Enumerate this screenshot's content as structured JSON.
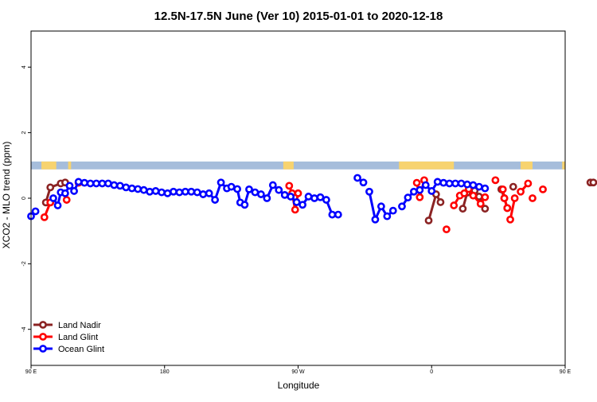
{
  "chart_data": {
    "type": "line",
    "title": "12.5N-17.5N June (Ver 10)   2015-01-01 to 2020-12-18",
    "xlabel": "Longitude",
    "ylabel": "XCO2 - MLO trend (ppm)",
    "xlim": [
      90,
      450
    ],
    "ylim": [
      -5.1,
      5.1
    ],
    "x_ticks": [
      {
        "value": 90,
        "label": "90 E"
      },
      {
        "value": 180,
        "label": "180"
      },
      {
        "value": 270,
        "label": "90 W"
      },
      {
        "value": 360,
        "label": "0"
      },
      {
        "value": 450,
        "label": "90 E"
      },
      {
        "value": 540,
        "label": "180"
      }
    ],
    "y_ticks": [
      {
        "value": -4,
        "label": "-4"
      },
      {
        "value": -2,
        "label": "-2"
      },
      {
        "value": 0,
        "label": "0"
      },
      {
        "value": 2,
        "label": "2"
      },
      {
        "value": 4,
        "label": "4"
      }
    ],
    "grid": false,
    "legend_position": "bottom-left",
    "land_strip": {
      "y_range": [
        0.88,
        1.12
      ],
      "ocean_color": "#a6bddb",
      "land_color": "#f7d36f",
      "land_segments": [
        [
          97,
          107
        ],
        [
          115,
          117
        ],
        [
          260,
          267
        ],
        [
          338,
          375
        ],
        [
          420,
          428
        ],
        [
          448,
          464
        ],
        [
          473,
          481
        ]
      ]
    },
    "series": [
      {
        "name": "Land Nadir",
        "color": "#8b2323",
        "segments": [
          [
            [
              100,
              -0.13
            ],
            [
              103,
              0.33
            ],
            [
              110,
              0.45
            ],
            [
              113,
              0.48
            ]
          ],
          [
            [
              358,
              -0.68
            ],
            [
              363,
              0.12
            ],
            [
              366,
              -0.12
            ]
          ],
          [
            [
              381,
              -0.32
            ],
            [
              384,
              0.17
            ],
            [
              387,
              0.3
            ],
            [
              389,
              0.23
            ],
            [
              392,
              0.05
            ],
            [
              396,
              -0.32
            ]
          ],
          [
            [
              407,
              0.27
            ],
            [
              409,
              0.0
            ],
            [
              411,
              -0.3
            ]
          ],
          [
            [
              415,
              0.35
            ]
          ],
          [
            [
              467,
              0.48
            ],
            [
              469,
              0.48
            ]
          ]
        ]
      },
      {
        "name": "Land Glint",
        "color": "#ff0000",
        "segments": [
          [
            [
              99,
              -0.58
            ],
            [
              103,
              -0.13
            ]
          ],
          [
            [
              114,
              -0.05
            ]
          ],
          [
            [
              122,
              0.47
            ]
          ],
          [
            [
              264,
              0.38
            ],
            [
              266,
              0.15
            ],
            [
              268,
              -0.35
            ],
            [
              270,
              0.15
            ]
          ],
          [
            [
              350,
              0.47
            ],
            [
              352,
              0.03
            ],
            [
              355,
              0.55
            ]
          ],
          [
            [
              370,
              -0.95
            ]
          ],
          [
            [
              375,
              -0.22
            ],
            [
              379,
              0.08
            ],
            [
              382,
              0.15
            ],
            [
              385,
              0.28
            ],
            [
              388,
              0.08
            ],
            [
              393,
              -0.17
            ],
            [
              396,
              0.03
            ]
          ],
          [
            [
              403,
              0.55
            ]
          ],
          [
            [
              408,
              0.27
            ],
            [
              409,
              0.0
            ],
            [
              411,
              -0.3
            ]
          ],
          [
            [
              413,
              -0.65
            ],
            [
              416,
              0.0
            ]
          ],
          [
            [
              420,
              0.2
            ],
            [
              425,
              0.45
            ]
          ],
          [
            [
              428,
              0.0
            ]
          ],
          [
            [
              435,
              0.27
            ]
          ]
        ]
      },
      {
        "name": "Ocean Glint",
        "color": "#0000ff",
        "segments": [
          [
            [
              90,
              -0.55
            ],
            [
              93,
              -0.4
            ]
          ],
          [
            [
              105,
              0.0
            ],
            [
              108,
              -0.22
            ],
            [
              110,
              0.18
            ],
            [
              113,
              0.15
            ],
            [
              116,
              0.38
            ],
            [
              119,
              0.22
            ],
            [
              122,
              0.5
            ],
            [
              126,
              0.47
            ],
            [
              130,
              0.45
            ],
            [
              134,
              0.45
            ],
            [
              138,
              0.45
            ],
            [
              142,
              0.45
            ],
            [
              146,
              0.4
            ],
            [
              150,
              0.38
            ],
            [
              154,
              0.33
            ],
            [
              158,
              0.3
            ],
            [
              162,
              0.28
            ],
            [
              166,
              0.25
            ],
            [
              170,
              0.2
            ],
            [
              174,
              0.22
            ],
            [
              178,
              0.18
            ],
            [
              182,
              0.15
            ],
            [
              186,
              0.2
            ],
            [
              190,
              0.18
            ],
            [
              194,
              0.2
            ],
            [
              198,
              0.2
            ],
            [
              202,
              0.18
            ],
            [
              206,
              0.12
            ],
            [
              210,
              0.15
            ],
            [
              214,
              -0.05
            ],
            [
              218,
              0.48
            ],
            [
              222,
              0.3
            ],
            [
              225,
              0.35
            ],
            [
              229,
              0.28
            ],
            [
              231,
              -0.13
            ],
            [
              234,
              -0.2
            ],
            [
              237,
              0.27
            ],
            [
              241,
              0.18
            ],
            [
              245,
              0.12
            ],
            [
              249,
              0.0
            ],
            [
              253,
              0.4
            ],
            [
              257,
              0.25
            ],
            [
              261,
              0.1
            ],
            [
              265,
              0.05
            ],
            [
              269,
              -0.12
            ],
            [
              273,
              -0.2
            ],
            [
              277,
              0.05
            ],
            [
              281,
              0.0
            ],
            [
              285,
              0.03
            ],
            [
              289,
              -0.05
            ],
            [
              293,
              -0.5
            ],
            [
              297,
              -0.5
            ]
          ],
          [
            [
              310,
              0.62
            ],
            [
              314,
              0.48
            ]
          ],
          [
            [
              318,
              0.2
            ],
            [
              322,
              -0.65
            ],
            [
              326,
              -0.25
            ],
            [
              330,
              -0.55
            ],
            [
              334,
              -0.38
            ]
          ],
          [
            [
              340,
              -0.25
            ],
            [
              344,
              0.02
            ],
            [
              348,
              0.2
            ],
            [
              352,
              0.25
            ],
            [
              356,
              0.4
            ],
            [
              360,
              0.22
            ],
            [
              364,
              0.5
            ],
            [
              368,
              0.47
            ],
            [
              372,
              0.45
            ],
            [
              376,
              0.45
            ],
            [
              380,
              0.45
            ],
            [
              384,
              0.42
            ],
            [
              388,
              0.4
            ],
            [
              392,
              0.35
            ],
            [
              396,
              0.3
            ]
          ]
        ]
      }
    ]
  }
}
